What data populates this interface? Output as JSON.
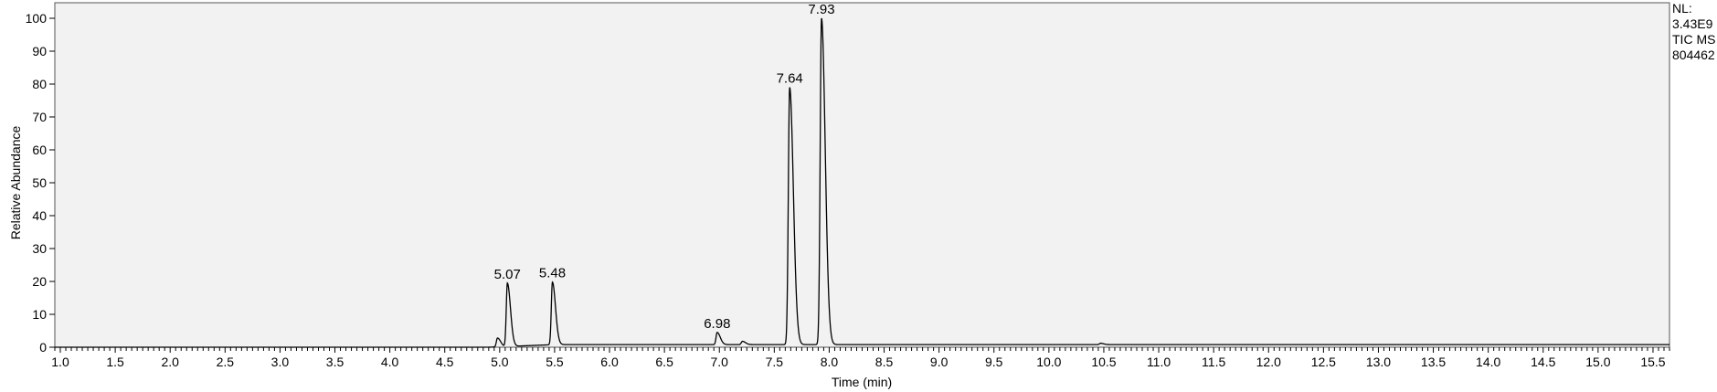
{
  "chart_data": {
    "type": "line",
    "xlabel": "Time (min)",
    "ylabel": "Relative Abundance",
    "xlim": [
      0.95,
      15.65
    ],
    "ylim": [
      0,
      100
    ],
    "x_ticks": [
      "1.0",
      "1.5",
      "2.0",
      "2.5",
      "3.0",
      "3.5",
      "4.0",
      "4.5",
      "5.0",
      "5.5",
      "6.0",
      "6.5",
      "7.0",
      "7.5",
      "8.0",
      "8.5",
      "9.0",
      "9.5",
      "10.0",
      "10.5",
      "11.0",
      "11.5",
      "12.0",
      "12.5",
      "13.0",
      "13.5",
      "14.0",
      "14.5",
      "15.0",
      "15.5"
    ],
    "y_ticks": [
      "0",
      "10",
      "20",
      "30",
      "40",
      "50",
      "60",
      "70",
      "80",
      "90",
      "100"
    ],
    "info": [
      "NL:",
      "3.43E9",
      "TIC  MS",
      "804462"
    ],
    "peaks": [
      {
        "label": "5.07",
        "x": 5.07,
        "y": 19.5
      },
      {
        "label": "5.48",
        "x": 5.48,
        "y": 19.8
      },
      {
        "label": "6.98",
        "x": 6.98,
        "y": 4.5
      },
      {
        "label": "7.64",
        "x": 7.64,
        "y": 79
      },
      {
        "label": "7.93",
        "x": 7.93,
        "y": 100
      }
    ],
    "minor_peaks": [
      {
        "x": 4.98,
        "y": 2.8
      },
      {
        "x": 7.21,
        "y": 1.8
      },
      {
        "x": 10.47,
        "y": 1.2
      }
    ],
    "baseline": 0.8,
    "grid": false,
    "colors": {
      "plot_bg": "#f2f2f2",
      "trace": "#000000",
      "axis": "#000000"
    }
  }
}
